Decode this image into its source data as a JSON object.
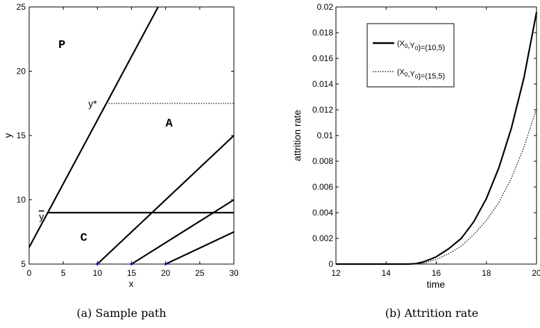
{
  "chart_data": [
    {
      "type": "line",
      "caption": "(a) Sample path",
      "xlabel": "x",
      "ylabel": "y",
      "xlim": [
        0,
        30
      ],
      "ylim": [
        5,
        25
      ],
      "xticks": [
        0,
        5,
        10,
        15,
        20,
        25,
        30
      ],
      "yticks": [
        5,
        10,
        15,
        20,
        25
      ],
      "region_labels": [
        {
          "text": "P",
          "x": 4.8,
          "y": 21.8
        },
        {
          "text": "A",
          "x": 20.5,
          "y": 15.7
        },
        {
          "text": "C",
          "x": 8.0,
          "y": 6.8
        }
      ],
      "annotations": [
        {
          "text": "y*",
          "x": 9.3,
          "y": 17.5
        },
        {
          "text": "y",
          "overline": true,
          "x": 1.8,
          "y": 8.7
        }
      ],
      "series": [
        {
          "x": [
            0,
            18.9
          ],
          "y": [
            6.3,
            25
          ],
          "style": "solid"
        },
        {
          "x": [
            2.8,
            30
          ],
          "y": [
            9.0,
            9.0
          ],
          "style": "solid"
        },
        {
          "x": [
            10,
            30
          ],
          "y": [
            5,
            15
          ],
          "style": "solid"
        },
        {
          "x": [
            15,
            30
          ],
          "y": [
            5,
            10
          ],
          "style": "solid"
        },
        {
          "x": [
            20,
            30
          ],
          "y": [
            5,
            7.5
          ],
          "style": "solid"
        },
        {
          "x": [
            11.3,
            30
          ],
          "y": [
            17.5,
            17.5
          ],
          "style": "dotted"
        }
      ],
      "markers": [
        {
          "x": 10,
          "y": 5
        },
        {
          "x": 15,
          "y": 5
        },
        {
          "x": 20,
          "y": 5
        }
      ]
    },
    {
      "type": "line",
      "caption": "(b) Attrition rate",
      "xlabel": "time",
      "ylabel": "attrition rate",
      "xlim": [
        12,
        20
      ],
      "ylim": [
        0,
        0.02
      ],
      "xticks": [
        12,
        14,
        16,
        18,
        20
      ],
      "yticks": [
        0,
        0.002,
        0.004,
        0.006,
        0.008,
        0.01,
        0.012,
        0.014,
        0.016,
        0.018,
        0.02
      ],
      "ytick_labels": [
        "0",
        "0.002",
        "0.004",
        "0.006",
        "0.008",
        "0.01",
        "0.012",
        "0.014",
        "0.016",
        "0.018",
        "0.02"
      ],
      "legend_position": "top-left",
      "series": [
        {
          "name": "(X0,Y0)=(10,5)",
          "style": "solid",
          "x": [
            12,
            14,
            14.9,
            15.2,
            15.5,
            15.8,
            16.0,
            16.5,
            17.0,
            17.5,
            18.0,
            18.5,
            19.0,
            19.5,
            20.0
          ],
          "y": [
            0,
            0,
            0,
            4e-05,
            0.00018,
            0.0004,
            0.00057,
            0.0012,
            0.002,
            0.0033,
            0.0051,
            0.0075,
            0.0106,
            0.0145,
            0.0196
          ]
        },
        {
          "name": "(X0,Y0)=(15,5)",
          "style": "dotted",
          "x": [
            12,
            14,
            15.2,
            15.5,
            16.0,
            16.5,
            17.0,
            17.5,
            18.0,
            18.5,
            19.0,
            19.5,
            20.0
          ],
          "y": [
            0,
            0,
            0,
            6e-05,
            0.00036,
            0.00081,
            0.0014,
            0.0023,
            0.0034,
            0.0048,
            0.0067,
            0.0091,
            0.0121
          ]
        }
      ]
    }
  ]
}
